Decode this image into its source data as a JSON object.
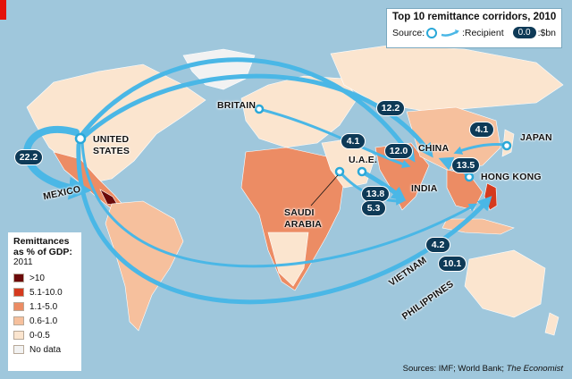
{
  "title": "Top 10 remittance corridors, 2010",
  "key": {
    "source_label": "Source:",
    "recipient_label": ":Recipient",
    "pill_sample": "0.0",
    "unit_label": ":$bn"
  },
  "legend": {
    "title_lines": [
      "Remittances",
      "as % of GDP:"
    ],
    "year": "2011",
    "items": [
      {
        "label": ">10",
        "color": "#6b0a0a"
      },
      {
        "label": "5.1-10.0",
        "color": "#d53a1e"
      },
      {
        "label": "1.1-5.0",
        "color": "#ec8c64"
      },
      {
        "label": "0.6-1.0",
        "color": "#f6c09d"
      },
      {
        "label": "0-0.5",
        "color": "#fbe5cf"
      },
      {
        "label": "No data",
        "color": "#f2f2f2"
      }
    ]
  },
  "countries": {
    "united_states": "UNITED STATES",
    "mexico": "MEXICO",
    "britain": "BRITAIN",
    "uae": "U.A.E.",
    "saudi_arabia": "SAUDI ARABIA",
    "india": "INDIA",
    "china": "CHINA",
    "japan": "JAPAN",
    "hong_kong": "HONG KONG",
    "vietnam": "VIETNAM",
    "philippines": "PHILIPPINES"
  },
  "corridors": [
    {
      "from": "United States",
      "to": "Mexico",
      "value": "22.2"
    },
    {
      "from": "United States",
      "to": "India",
      "value": "12.0"
    },
    {
      "from": "Britain",
      "to": "India",
      "value": "4.1"
    },
    {
      "from": "United States",
      "to": "China",
      "value": "12.2"
    },
    {
      "from": "Japan",
      "to": "China",
      "value": "4.1"
    },
    {
      "from": "Hong Kong",
      "to": "China",
      "value": "13.5"
    },
    {
      "from": "U.A.E.",
      "to": "India",
      "value": "13.8"
    },
    {
      "from": "Saudi Arabia",
      "to": "India",
      "value": "5.3"
    },
    {
      "from": "United States",
      "to": "Vietnam",
      "value": "4.2"
    },
    {
      "from": "United States",
      "to": "Philippines",
      "value": "10.1"
    }
  ],
  "source_text": "Sources: IMF; World Bank; ",
  "source_italic": "The Economist",
  "colors": {
    "ocean": "#9fc7dc",
    "arrow": "#4ab7e6",
    "pill": "#0e3a57",
    "accent": "#e3120b"
  }
}
